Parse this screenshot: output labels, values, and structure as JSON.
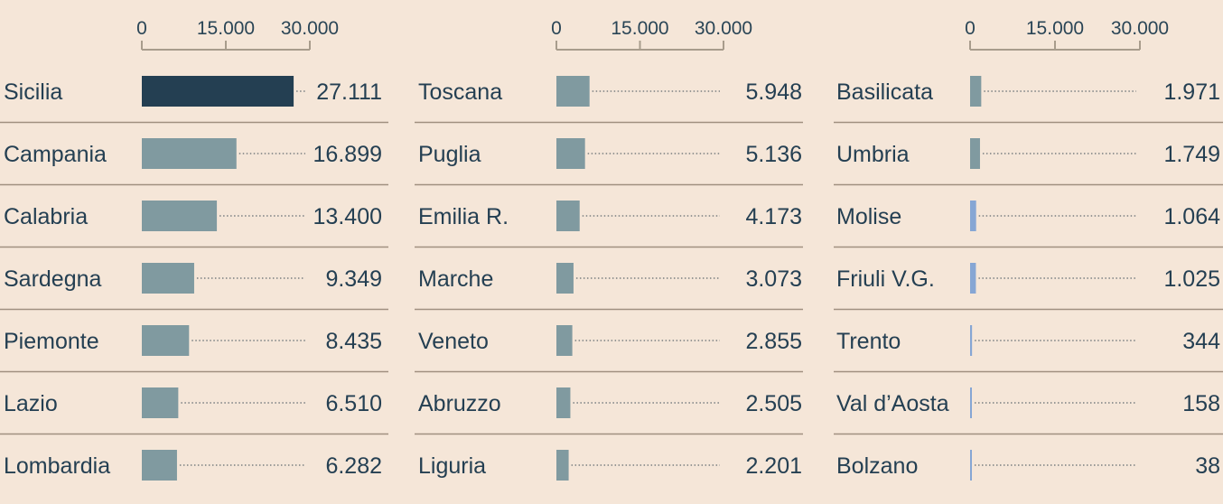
{
  "chart_data": [
    {
      "type": "bar",
      "orientation": "horizontal",
      "xlim": [
        0,
        30000
      ],
      "tick_labels": [
        "0",
        "15.000",
        "30.000"
      ],
      "tick_values": [
        0,
        15000,
        30000
      ],
      "rows": [
        {
          "label": "Sicilia",
          "value": 27111,
          "value_label": "27.111",
          "color": "#243f52"
        },
        {
          "label": "Campania",
          "value": 16899,
          "value_label": "16.899",
          "color": "#809aa0"
        },
        {
          "label": "Calabria",
          "value": 13400,
          "value_label": "13.400",
          "color": "#809aa0"
        },
        {
          "label": "Sardegna",
          "value": 9349,
          "value_label": "9.349",
          "color": "#809aa0"
        },
        {
          "label": "Piemonte",
          "value": 8435,
          "value_label": "8.435",
          "color": "#809aa0"
        },
        {
          "label": "Lazio",
          "value": 6510,
          "value_label": "6.510",
          "color": "#809aa0"
        },
        {
          "label": "Lombardia",
          "value": 6282,
          "value_label": "6.282",
          "color": "#809aa0"
        }
      ]
    },
    {
      "type": "bar",
      "orientation": "horizontal",
      "xlim": [
        0,
        30000
      ],
      "tick_labels": [
        "0",
        "15.000",
        "30.000"
      ],
      "tick_values": [
        0,
        15000,
        30000
      ],
      "rows": [
        {
          "label": "Toscana",
          "value": 5948,
          "value_label": "5.948",
          "color": "#809aa0"
        },
        {
          "label": "Puglia",
          "value": 5136,
          "value_label": "5.136",
          "color": "#809aa0"
        },
        {
          "label": "Emilia R.",
          "value": 4173,
          "value_label": "4.173",
          "color": "#809aa0"
        },
        {
          "label": "Marche",
          "value": 3073,
          "value_label": "3.073",
          "color": "#809aa0"
        },
        {
          "label": "Veneto",
          "value": 2855,
          "value_label": "2.855",
          "color": "#809aa0"
        },
        {
          "label": "Abruzzo",
          "value": 2505,
          "value_label": "2.505",
          "color": "#809aa0"
        },
        {
          "label": "Liguria",
          "value": 2201,
          "value_label": "2.201",
          "color": "#809aa0"
        }
      ]
    },
    {
      "type": "bar",
      "orientation": "horizontal",
      "xlim": [
        0,
        30000
      ],
      "tick_labels": [
        "0",
        "15.000",
        "30.000"
      ],
      "tick_values": [
        0,
        15000,
        30000
      ],
      "rows": [
        {
          "label": "Basilicata",
          "value": 1971,
          "value_label": "1.971",
          "color": "#809aa0"
        },
        {
          "label": "Umbria",
          "value": 1749,
          "value_label": "1.749",
          "color": "#809aa0"
        },
        {
          "label": "Molise",
          "value": 1064,
          "value_label": "1.064",
          "color": "#86a6d4"
        },
        {
          "label": "Friuli V.G.",
          "value": 1025,
          "value_label": "1.025",
          "color": "#86a6d4"
        },
        {
          "label": "Trento",
          "value": 344,
          "value_label": "344",
          "color": "#86a6d4"
        },
        {
          "label": "Val d’Aosta",
          "value": 158,
          "value_label": "158",
          "color": "#86a6d4"
        },
        {
          "label": "Bolzano",
          "value": 38,
          "value_label": "38",
          "color": "#86a6d4"
        }
      ]
    }
  ],
  "style": {
    "background": "#f5e6d8",
    "axis_color": "#a89c8c",
    "separator_color": "#a09080",
    "dot_color": "#3a4a55",
    "text_color": "#243f52"
  }
}
